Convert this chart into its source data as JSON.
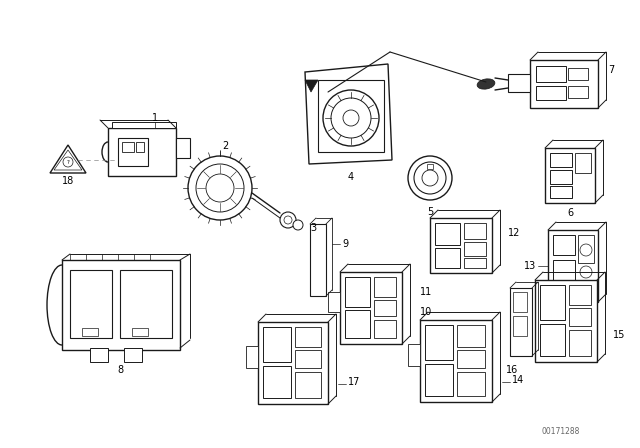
{
  "background_color": "#ffffff",
  "line_color": "#1a1a1a",
  "part_number": "00171288",
  "fig_width": 6.4,
  "fig_height": 4.48,
  "dpi": 100
}
